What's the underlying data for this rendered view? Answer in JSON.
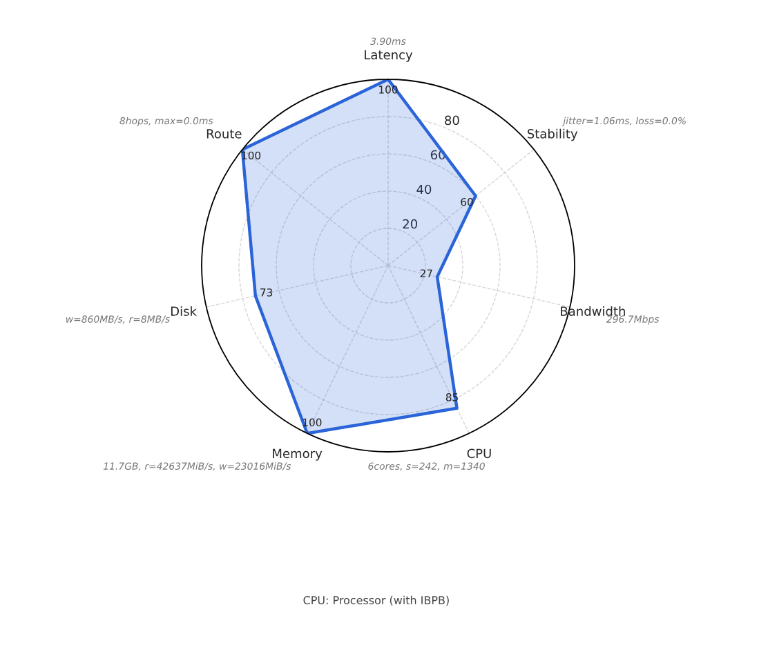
{
  "chart_data": {
    "type": "radar",
    "categories": [
      "Latency",
      "Stability",
      "Bandwidth",
      "CPU",
      "Memory",
      "Disk",
      "Route"
    ],
    "series": [
      {
        "color": "#2a64d8",
        "values": [
          100,
          60,
          27,
          85,
          100,
          73,
          100
        ]
      }
    ],
    "ylim": [
      0,
      100
    ],
    "yticks": [
      20,
      40,
      60,
      80
    ],
    "grid": true,
    "data_labels": true,
    "annotations": [
      {
        "text": "3.90ms",
        "x": "Latency"
      },
      {
        "text": "jitter=1.06ms, loss=0.0%",
        "x": "Stability"
      },
      {
        "text": "296.7Mbps",
        "x": "Bandwidth"
      },
      {
        "text": "6cores, s=242, m=1340",
        "x": "CPU"
      },
      {
        "text": "11.7GB, r=42637MiB/s, w=23016MiB/s",
        "x": "Memory"
      },
      {
        "text": "w=860MB/s, r=8MB/s",
        "x": "Disk"
      },
      {
        "text": "8hops, max=0.0ms",
        "x": "Route"
      },
      "CPU: Processor (with IBPB)"
    ]
  }
}
